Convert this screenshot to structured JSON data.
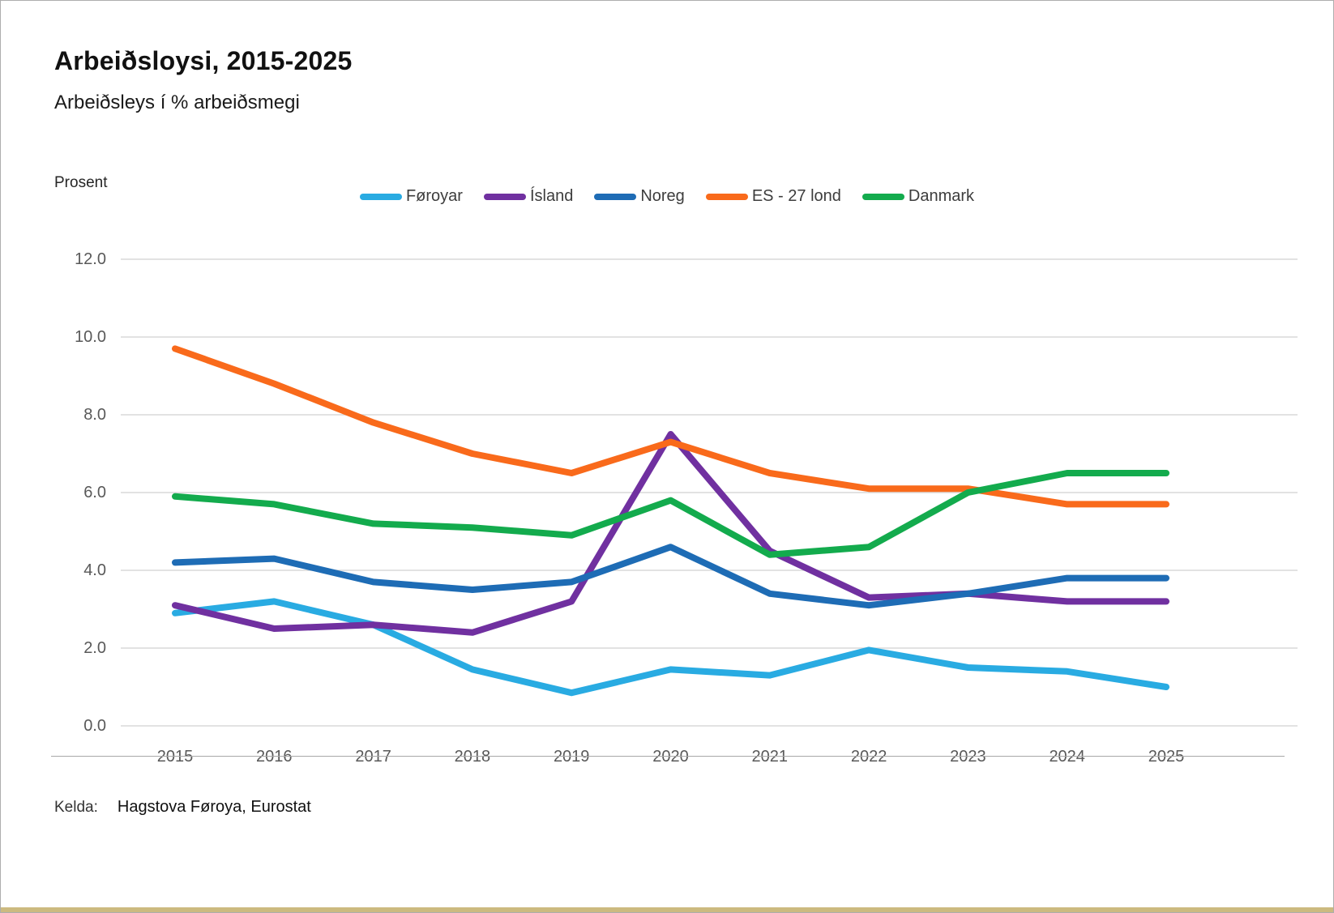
{
  "header": {
    "title": "Arbeiðsloysi, 2015-2025",
    "subtitle": "Arbeiðsleys í % arbeiðsmegi"
  },
  "chart_data": {
    "type": "line",
    "title": "Arbeiðsloysi, 2015-2025",
    "subtitle": "Arbeiðsleys í % arbeiðsmegi",
    "ylabel": "Prosent",
    "xlabel": "",
    "categories": [
      "2015",
      "2016",
      "2017",
      "2018",
      "2019",
      "2020",
      "2021",
      "2022",
      "2023",
      "2024",
      "2025"
    ],
    "ylim": [
      0,
      12
    ],
    "ytick_step": 2,
    "yticks": [
      "0.0",
      "2.0",
      "4.0",
      "6.0",
      "8.0",
      "10.0",
      "12.0"
    ],
    "grid": true,
    "legend_position": "top",
    "series": [
      {
        "name": "Føroyar",
        "color": "#29ABE2",
        "values": [
          2.9,
          3.2,
          2.6,
          1.45,
          0.85,
          1.45,
          1.3,
          1.95,
          1.5,
          1.4,
          1.0
        ]
      },
      {
        "name": "Ísland",
        "color": "#7030A0",
        "values": [
          3.1,
          2.5,
          2.6,
          2.4,
          3.2,
          7.5,
          4.5,
          3.3,
          3.4,
          3.2,
          3.2
        ]
      },
      {
        "name": "Noreg",
        "color": "#1E6CB5",
        "values": [
          4.2,
          4.3,
          3.7,
          3.5,
          3.7,
          4.6,
          3.4,
          3.1,
          3.4,
          3.8,
          3.8
        ]
      },
      {
        "name": "ES - 27 lond",
        "color": "#F96A1B",
        "values": [
          9.7,
          8.8,
          7.8,
          7.0,
          6.5,
          7.3,
          6.5,
          6.1,
          6.1,
          5.7,
          5.7
        ]
      },
      {
        "name": "Danmark",
        "color": "#13AB4D",
        "values": [
          5.9,
          5.7,
          5.2,
          5.1,
          4.9,
          5.8,
          4.4,
          4.6,
          6.0,
          6.5,
          6.5
        ]
      }
    ]
  },
  "footer": {
    "source_label": "Kelda:",
    "source_value": "Hagstova Føroya, Eurostat"
  }
}
